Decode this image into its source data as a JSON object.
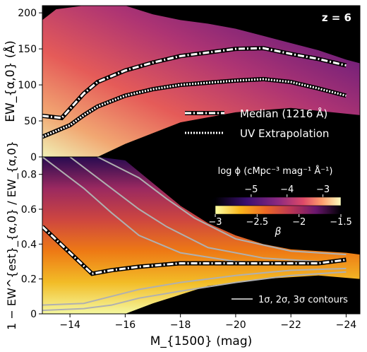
{
  "colors": {
    "background": "#000000",
    "median_line": "#ffffff",
    "median_outline": "#000000",
    "uv_line": "#ffffff",
    "contour": "#b0b0b0"
  },
  "chart_data": [
    {
      "type": "heatmap",
      "annotation": "z = 6",
      "ylabel": "EW_{α,0} (Å)",
      "xlim": [
        -13,
        -24.5
      ],
      "ylim": [
        0,
        210
      ],
      "yticks": [
        0,
        50,
        100,
        150,
        200
      ],
      "yticklabels": [
        "0",
        "50",
        "100",
        "150",
        "200"
      ],
      "colorbar": {
        "label": "log ϕ  (cMpc⁻³ mag⁻¹ Å⁻¹)",
        "range": [
          -6,
          -2.5
        ],
        "ticks": [
          -5,
          -4,
          -3
        ],
        "ticklabels": [
          "−5",
          "−4",
          "−3"
        ],
        "colormap": "magma"
      },
      "legend_position": "lower-right",
      "series": [
        {
          "name": "Median (1216 Å)",
          "style": "dash-dot",
          "x": [
            -13.0,
            -13.7,
            -14.5,
            -15.0,
            -16.0,
            -17.0,
            -18.0,
            -19.0,
            -20.0,
            -21.0,
            -22.0,
            -23.0,
            -24.0
          ],
          "values": [
            57,
            54,
            88,
            104,
            120,
            131,
            140,
            145,
            150,
            151,
            143,
            136,
            127
          ]
        },
        {
          "name": "UV Extrapolation",
          "style": "dotted",
          "x": [
            -13.0,
            -13.5,
            -14.0,
            -14.5,
            -15.0,
            -16.0,
            -17.0,
            -18.0,
            -19.0,
            -20.0,
            -21.0,
            -22.0,
            -23.0,
            -24.0
          ],
          "values": [
            28,
            36,
            44,
            58,
            70,
            85,
            94,
            100,
            103,
            106,
            108,
            104,
            95,
            85
          ]
        }
      ]
    },
    {
      "type": "heatmap",
      "ylabel": "1 − EW^{est}_{α,0} / EW_{α,0}",
      "xlabel": "M_{1500} (mag)",
      "xlim": [
        -13,
        -24.5
      ],
      "ylim": [
        0,
        0.9
      ],
      "xticks": [
        -14,
        -16,
        -18,
        -20,
        -22,
        -24
      ],
      "xticklabels": [
        "−14",
        "−16",
        "−18",
        "−20",
        "−22",
        "−24"
      ],
      "yticks": [
        0,
        0.2,
        0.4,
        0.6,
        0.8
      ],
      "yticklabels": [
        "0",
        "0.2",
        "0.4",
        "0.6",
        "0.8"
      ],
      "colorbar": {
        "label": "β",
        "range": [
          -3,
          -1.5
        ],
        "ticks": [
          -3,
          -2.5,
          -2,
          -1.5
        ],
        "ticklabels": [
          "−3",
          "−2.5",
          "−2",
          "−1.5"
        ],
        "colormap": "inferno_r"
      },
      "legend_position": "lower-right",
      "series": [
        {
          "name": "Median",
          "style": "dash-dot",
          "x": [
            -13.0,
            -14.0,
            -14.8,
            -15.5,
            -16.5,
            -18.0,
            -20.0,
            -22.0,
            -23.0,
            -24.0
          ],
          "values": [
            0.5,
            0.35,
            0.23,
            0.25,
            0.27,
            0.29,
            0.29,
            0.29,
            0.29,
            0.31
          ]
        }
      ],
      "contour_legend": "1σ, 2σ, 3σ contours"
    }
  ]
}
